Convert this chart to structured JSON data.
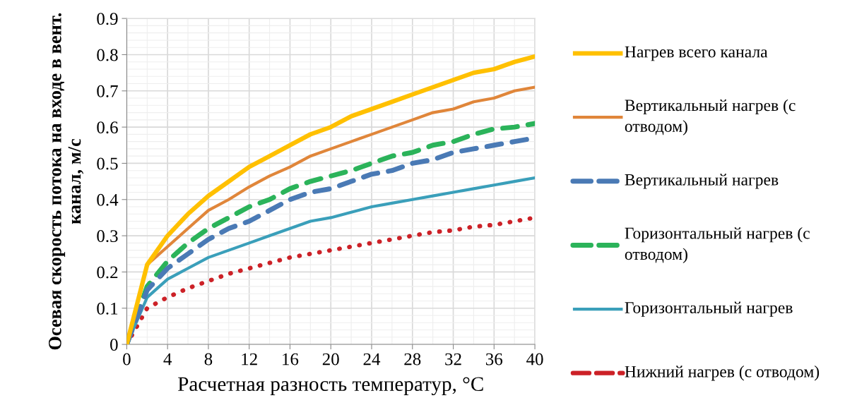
{
  "chart_data": {
    "type": "line",
    "xlabel": "Расчетная разность температур, °C",
    "ylabel": "Осевая скорость потока на входе в вент. канал, м/с",
    "x": [
      0,
      2,
      4,
      6,
      8,
      10,
      12,
      14,
      16,
      18,
      20,
      22,
      24,
      26,
      28,
      30,
      32,
      34,
      36,
      38,
      40
    ],
    "xlim": [
      0,
      40
    ],
    "xticks": [
      0,
      4,
      8,
      12,
      16,
      20,
      24,
      28,
      32,
      36,
      40
    ],
    "ylim": [
      0,
      0.9
    ],
    "yticks": [
      0,
      0.1,
      0.2,
      0.3,
      0.4,
      0.5,
      0.6,
      0.7,
      0.8,
      0.9
    ],
    "grid": true,
    "legend": "right",
    "series": [
      {
        "name": "Нагрев всего канала",
        "color": "#ffc000",
        "line_style": "solid",
        "values": [
          0,
          0.22,
          0.3,
          0.36,
          0.41,
          0.45,
          0.49,
          0.52,
          0.55,
          0.58,
          0.6,
          0.63,
          0.65,
          0.67,
          0.69,
          0.71,
          0.73,
          0.75,
          0.76,
          0.78,
          0.795
        ]
      },
      {
        "name": "Вертикальный нагрев (с отводом)",
        "color": "#e0863a",
        "line_style": "solid",
        "values": [
          0,
          0.22,
          0.27,
          0.32,
          0.37,
          0.4,
          0.435,
          0.465,
          0.49,
          0.52,
          0.54,
          0.56,
          0.58,
          0.6,
          0.62,
          0.64,
          0.65,
          0.67,
          0.68,
          0.7,
          0.71
        ]
      },
      {
        "name": "Вертикальный нагрев",
        "color": "#4a7ab5",
        "line_style": "dashed",
        "values": [
          0,
          0.15,
          0.21,
          0.25,
          0.29,
          0.32,
          0.34,
          0.37,
          0.4,
          0.42,
          0.43,
          0.45,
          0.47,
          0.48,
          0.5,
          0.51,
          0.53,
          0.54,
          0.55,
          0.56,
          0.57
        ]
      },
      {
        "name": "Горизонтальный нагрев (с отводом)",
        "color": "#2bb35a",
        "line_style": "dashed",
        "values": [
          0,
          0.16,
          0.23,
          0.28,
          0.32,
          0.35,
          0.38,
          0.4,
          0.43,
          0.45,
          0.465,
          0.48,
          0.5,
          0.52,
          0.53,
          0.55,
          0.56,
          0.58,
          0.595,
          0.6,
          0.61
        ]
      },
      {
        "name": "Горизонтальный нагрев",
        "color": "#3a9fba",
        "line_style": "solid",
        "values": [
          0,
          0.13,
          0.18,
          0.21,
          0.24,
          0.26,
          0.28,
          0.3,
          0.32,
          0.34,
          0.35,
          0.365,
          0.38,
          0.39,
          0.4,
          0.41,
          0.42,
          0.43,
          0.44,
          0.45,
          0.46
        ]
      },
      {
        "name": "Нижний нагрев (с отводом)",
        "color": "#cc2127",
        "line_style": "dotted",
        "values": [
          0,
          0.1,
          0.13,
          0.155,
          0.175,
          0.195,
          0.21,
          0.225,
          0.24,
          0.25,
          0.26,
          0.27,
          0.28,
          0.29,
          0.3,
          0.31,
          0.315,
          0.325,
          0.33,
          0.34,
          0.35
        ]
      }
    ]
  }
}
